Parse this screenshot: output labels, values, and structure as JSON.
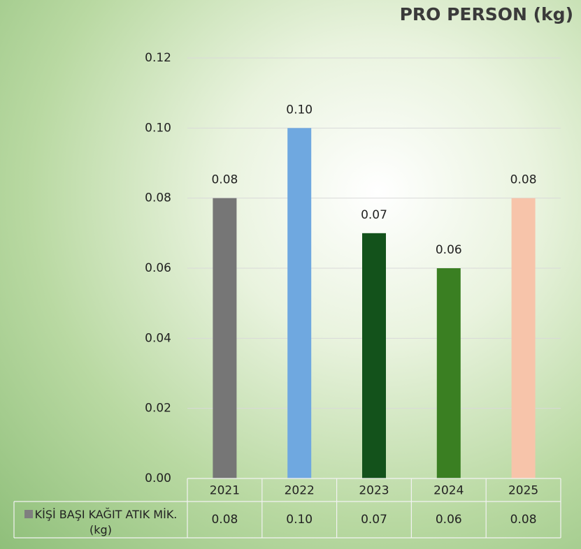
{
  "chart_data": {
    "type": "bar",
    "title": "PRO PERSON (kg)",
    "categories": [
      "2021",
      "2022",
      "2023",
      "2024",
      "2025"
    ],
    "series": [
      {
        "name": "KİŞİ BAŞI KAĞIT ATIK MİK. (kg)",
        "color": "#7f7f7f",
        "colors": [
          "#767676",
          "#6fa8e0",
          "#13521b",
          "#3a7f22",
          "#f7c4aa"
        ],
        "values": [
          0.08,
          0.1,
          0.07,
          0.06,
          0.08
        ],
        "value_labels": [
          "0.08",
          "0.10",
          "0.07",
          "0.06",
          "0.08"
        ]
      }
    ],
    "ylim": [
      0,
      0.12
    ],
    "yticks": [
      {
        "value": 0,
        "label": "0.00"
      },
      0.02,
      0.04,
      0.06,
      0.08,
      {
        "value": 0.1,
        "label": "0.10"
      },
      0.12
    ],
    "grid": true,
    "data_table": true
  }
}
